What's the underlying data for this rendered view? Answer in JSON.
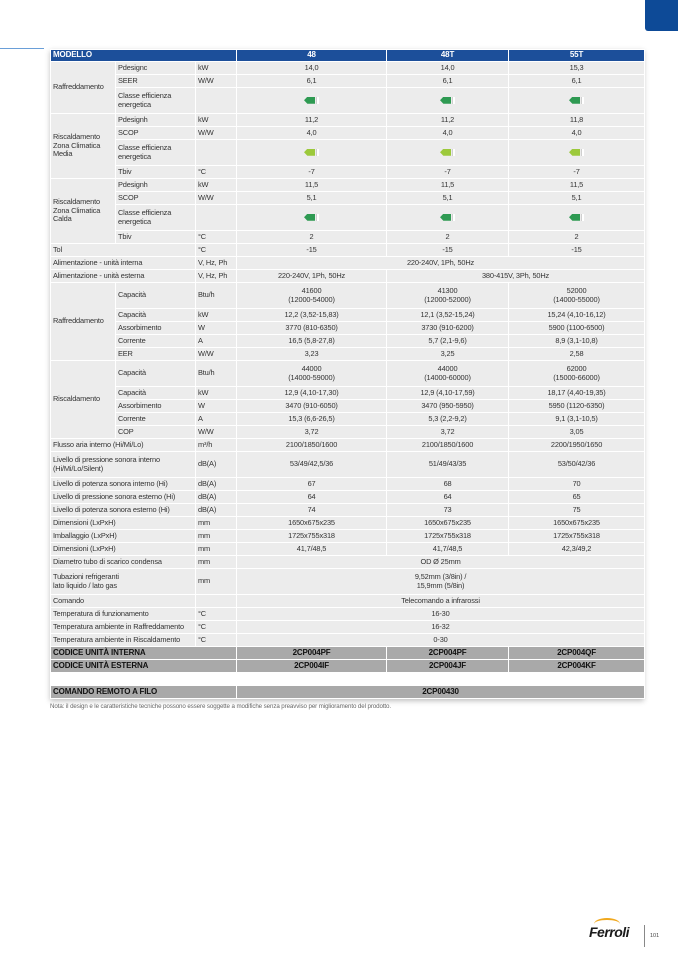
{
  "header": [
    "MODELLO",
    "48",
    "48T",
    "55T"
  ],
  "badge_colors": {
    "dark": "#2e9a52",
    "light": "#9cc93b"
  },
  "rows": [
    {
      "g": "Raffreddamento",
      "gs": 3,
      "l": "Pdesignc",
      "u": "kW",
      "v": [
        "14,0",
        "14,0",
        "15,3"
      ]
    },
    {
      "l": "SEER",
      "u": "W/W",
      "v": [
        "6,1",
        "6,1",
        "6,1"
      ]
    },
    {
      "l": "Classe efficienza\nenergetica",
      "u": "",
      "h": 2,
      "badge": [
        "dark",
        "dark",
        "dark"
      ]
    },
    {
      "g": "Riscaldamento\nZona Climatica\nMedia",
      "gs": 4,
      "l": "Pdesignh",
      "u": "kW",
      "v": [
        "11,2",
        "11,2",
        "11,8"
      ]
    },
    {
      "l": "SCOP",
      "u": "W/W",
      "v": [
        "4,0",
        "4,0",
        "4,0"
      ]
    },
    {
      "l": "Classe efficienza\nenergetica",
      "u": "",
      "h": 2,
      "badge": [
        "light",
        "light",
        "light"
      ]
    },
    {
      "l": "Tbiv",
      "u": "°C",
      "v": [
        "-7",
        "-7",
        "-7"
      ]
    },
    {
      "g": "Riscaldamento\nZona Climatica\nCalda",
      "gs": 4,
      "l": "Pdesignh",
      "u": "kW",
      "v": [
        "11,5",
        "11,5",
        "11,5"
      ]
    },
    {
      "l": "SCOP",
      "u": "W/W",
      "v": [
        "5,1",
        "5,1",
        "5,1"
      ]
    },
    {
      "l": "Classe efficienza\nenergetica",
      "u": "",
      "h": 2,
      "badge": [
        "dark",
        "dark",
        "dark"
      ]
    },
    {
      "l": "Tbiv",
      "u": "°C",
      "v": [
        "2",
        "2",
        "2"
      ]
    },
    {
      "f": "Tol",
      "u": "°C",
      "v": [
        "-15",
        "-15",
        "-15"
      ]
    },
    {
      "f": "Alimentazione - unità interna",
      "u": "V, Hz, Ph",
      "v": [
        "220-240V, 1Ph, 50Hz"
      ]
    },
    {
      "f": "Alimentazione - unità esterna",
      "u": "V, Hz, Ph",
      "v": [
        "220-240V, 1Ph, 50Hz",
        "380-415V, 3Ph, 50Hz"
      ]
    },
    {
      "g": "Raffreddamento",
      "gs": 5,
      "l": "Capacità",
      "u": "Btu/h",
      "h": 2,
      "v": [
        "41600\n(12000-54000)",
        "41300\n(12000-52000)",
        "52000\n(14000-55000)"
      ]
    },
    {
      "l": "Capacità",
      "u": "kW",
      "v": [
        "12,2 (3,52-15,83)",
        "12,1 (3,52-15,24)",
        "15,24 (4,10-16,12)"
      ]
    },
    {
      "l": "Assorbimento",
      "u": "W",
      "v": [
        "3770 (810-6350)",
        "3730 (910-6200)",
        "5900 (1100-6500)"
      ]
    },
    {
      "l": "Corrente",
      "u": "A",
      "v": [
        "16,5 (5,8-27,8)",
        "5,7 (2,1-9,6)",
        "8,9 (3,1-10,8)"
      ]
    },
    {
      "l": "EER",
      "u": "W/W",
      "v": [
        "3,23",
        "3,25",
        "2,58"
      ]
    },
    {
      "g": "Riscaldamento",
      "gs": 5,
      "l": "Capacità",
      "u": "Btu/h",
      "h": 2,
      "v": [
        "44000\n(14000-59000)",
        "44000\n(14000-60000)",
        "62000\n(15000-66000)"
      ]
    },
    {
      "l": "Capacità",
      "u": "kW",
      "v": [
        "12,9 (4,10-17,30)",
        "12,9 (4,10-17,59)",
        "18,17 (4,40-19,35)"
      ]
    },
    {
      "l": "Assorbimento",
      "u": "W",
      "v": [
        "3470 (910-6050)",
        "3470 (950-5950)",
        "5950 (1120-6350)"
      ]
    },
    {
      "l": "Corrente",
      "u": "A",
      "v": [
        "15,3 (6,6-26,5)",
        "5,3 (2,2-9,2)",
        "9,1 (3,1-10,5)"
      ]
    },
    {
      "l": "COP",
      "u": "W/W",
      "v": [
        "3,72",
        "3,72",
        "3,05"
      ]
    },
    {
      "f": "Flusso aria interno (Hi/Mi/Lo)",
      "u": "m³/h",
      "v": [
        "2100/1850/1600",
        "2100/1850/1600",
        "2200/1950/1650"
      ]
    },
    {
      "f": "Livello di pressione sonora interno\n(Hi/Mi/Lo/Silent)",
      "u": "dB(A)",
      "h": 2,
      "v": [
        "53/49/42,5/36",
        "51/49/43/35",
        "53/50/42/36"
      ]
    },
    {
      "f": "Livello di potenza sonora interno (Hi)",
      "u": "dB(A)",
      "v": [
        "67",
        "68",
        "70"
      ]
    },
    {
      "f": "Livello di pressione sonora esterno (Hi)",
      "u": "dB(A)",
      "v": [
        "64",
        "64",
        "65"
      ]
    },
    {
      "f": "Livello di potenza sonora esterno (Hi)",
      "u": "dB(A)",
      "v": [
        "74",
        "73",
        "75"
      ]
    },
    {
      "f": "Dimensioni (LxPxH)",
      "u": "mm",
      "v": [
        "1650x675x235",
        "1650x675x235",
        "1650x675x235"
      ]
    },
    {
      "f": "Imballaggio (LxPxH)",
      "u": "mm",
      "v": [
        "1725x755x318",
        "1725x755x318",
        "1725x755x318"
      ]
    },
    {
      "f": "Dimensioni (LxPxH)",
      "u": "mm",
      "v": [
        "41,7/48,5",
        "41,7/48,5",
        "42,3/49,2"
      ]
    },
    {
      "f": "Diametro tubo di scarico condensa",
      "u": "mm",
      "v": [
        "OD Ø 25mm"
      ]
    },
    {
      "f": "Tubazioni refrigeranti\nlato liquido / lato gas",
      "u": "mm",
      "h": 2,
      "v": [
        "9,52mm (3/8in) /\n15,9mm (5/8in)"
      ]
    },
    {
      "f": "Comando",
      "u": "",
      "v": [
        "Telecomando a infrarossi"
      ]
    },
    {
      "f": "Temperatura di funzionamento",
      "u": "°C",
      "v": [
        "16-30"
      ]
    },
    {
      "f": "Temperatura ambiente in Raffreddamento",
      "u": "°C",
      "v": [
        "16-32"
      ]
    },
    {
      "f": "Temperatura ambiente in Riscaldamento",
      "u": "°C",
      "v": [
        "0-30"
      ]
    },
    {
      "code": "CODICE UNITÀ INTERNA",
      "v": [
        "2CP004PF",
        "2CP004PF",
        "2CP004QF"
      ]
    },
    {
      "code": "CODICE UNITÀ ESTERNA",
      "v": [
        "2CP004IF",
        "2CP004JF",
        "2CP004KF"
      ]
    },
    {
      "spacer": true
    },
    {
      "code": "COMANDO REMOTO A FILO",
      "v": [
        "2CP00430"
      ]
    }
  ],
  "note": "Nota: il design e le caratteristiche tecniche possono essere soggette a modifiche senza preavviso per miglioramento del prodotto.",
  "footer": {
    "brand": "Ferroli",
    "page_number": "101"
  }
}
